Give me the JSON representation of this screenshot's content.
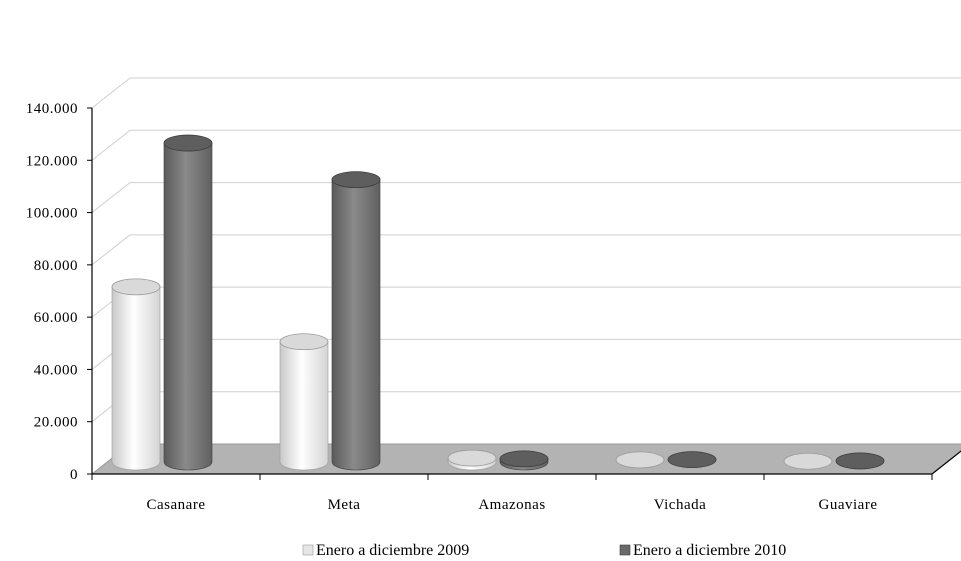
{
  "chart_data": {
    "type": "bar",
    "title": "",
    "xlabel": "",
    "ylabel": "",
    "ylim": [
      0,
      140000
    ],
    "y_ticks": [
      0,
      20000,
      40000,
      60000,
      80000,
      100000,
      120000,
      140000
    ],
    "y_tick_labels": [
      "0",
      "20.000",
      "40.000",
      "60.000",
      "80.000",
      "100.000",
      "120.000",
      "140.000"
    ],
    "categories": [
      "Casanare",
      "Meta",
      "Amazonas",
      "Vichada",
      "Guaviare"
    ],
    "series": [
      {
        "name": "Enero a diciembre 2009",
        "values": [
          67000,
          46000,
          1500,
          800,
          300
        ],
        "color": "#ececec"
      },
      {
        "name": "Enero a diciembre 2010",
        "values": [
          122000,
          108000,
          1200,
          900,
          400
        ],
        "color": "#707070"
      }
    ],
    "grid": true,
    "legend_position": "bottom",
    "style": "3d-cylinder",
    "floor_color": "#b3b3b3"
  }
}
